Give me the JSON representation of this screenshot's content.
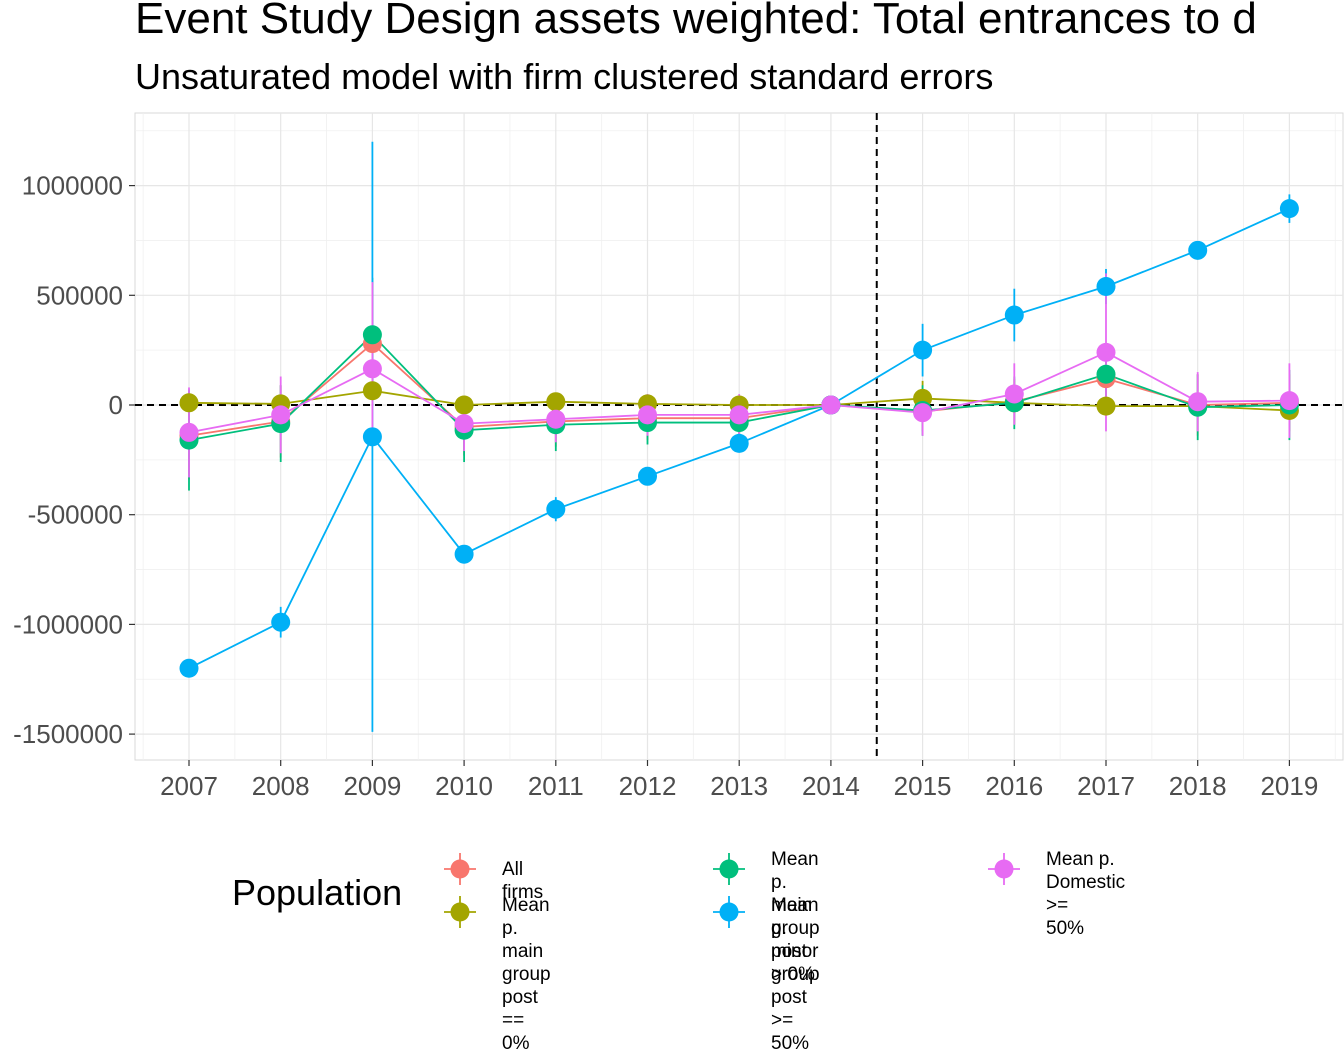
{
  "chart_data": {
    "type": "line",
    "title": "Event Study Design assets weighted: Total entrances to d",
    "subtitle": "Unsaturated model with firm clustered standard errors",
    "xlabel": "",
    "ylabel": "",
    "x": [
      "2007",
      "2008",
      "2009",
      "2010",
      "2011",
      "2012",
      "2013",
      "2014",
      "2015",
      "2016",
      "2017",
      "2018",
      "2019"
    ],
    "ylim": [
      -1650000,
      1330000
    ],
    "yticks": [
      -1500000,
      -1000000,
      -500000,
      0,
      500000,
      1000000
    ],
    "ytick_labels": [
      "-1500000",
      "-1000000",
      "-500000",
      "0",
      "500000",
      "1000000"
    ],
    "hline": 0,
    "vline_between": [
      "2014",
      "2015"
    ],
    "grid": true,
    "legend": {
      "title": "Population",
      "position": "bottom"
    },
    "series": [
      {
        "name": "All firms",
        "color": "#F8766D",
        "values": [
          -140000,
          -75000,
          280000,
          -100000,
          -75000,
          -60000,
          -60000,
          0,
          -30000,
          15000,
          120000,
          0,
          10000
        ],
        "ci_low": [
          -340000,
          -240000,
          0,
          -230000,
          -190000,
          -160000,
          -160000,
          0,
          -120000,
          -90000,
          10000,
          -140000,
          -120000
        ],
        "ci_high": [
          60000,
          90000,
          560000,
          30000,
          40000,
          40000,
          40000,
          0,
          60000,
          120000,
          230000,
          140000,
          140000
        ]
      },
      {
        "name": "Mean p. main group\npost == 0%",
        "color": "#A3A500",
        "values": [
          10000,
          5000,
          65000,
          0,
          15000,
          5000,
          0,
          0,
          30000,
          10000,
          -5000,
          -5000,
          -25000
        ],
        "ci_low": [
          -10000,
          -15000,
          20000,
          -20000,
          -5000,
          -15000,
          -20000,
          0,
          -50000,
          -10000,
          -20000,
          -20000,
          -60000
        ],
        "ci_high": [
          30000,
          25000,
          110000,
          20000,
          35000,
          25000,
          20000,
          0,
          110000,
          30000,
          10000,
          10000,
          10000
        ]
      },
      {
        "name": "Mean p. main group\npost > 0%",
        "color": "#00BF7D",
        "values": [
          -160000,
          -85000,
          320000,
          -115000,
          -90000,
          -80000,
          -80000,
          0,
          -25000,
          10000,
          140000,
          -10000,
          0
        ],
        "ci_low": [
          -390000,
          -260000,
          60000,
          -260000,
          -210000,
          -180000,
          -180000,
          0,
          -140000,
          -110000,
          20000,
          -160000,
          -160000
        ],
        "ci_high": [
          70000,
          90000,
          580000,
          30000,
          30000,
          20000,
          20000,
          0,
          90000,
          130000,
          260000,
          140000,
          160000
        ]
      },
      {
        "name": "Mean p. minor group\npost >= 50%",
        "color": "#00B0F6",
        "values": [
          -1200000,
          -990000,
          -145000,
          -680000,
          -475000,
          -325000,
          -175000,
          0,
          250000,
          410000,
          540000,
          705000,
          895000
        ],
        "ci_low": [
          -1230000,
          -1060000,
          -1490000,
          -710000,
          -530000,
          -355000,
          -200000,
          0,
          130000,
          290000,
          460000,
          680000,
          830000
        ],
        "ci_high": [
          -1170000,
          -920000,
          1200000,
          -650000,
          -420000,
          -295000,
          -150000,
          0,
          370000,
          530000,
          620000,
          730000,
          960000
        ]
      },
      {
        "name": "Mean p. Domestic >=\n50%",
        "color": "#E76BF3",
        "values": [
          -125000,
          -45000,
          165000,
          -85000,
          -65000,
          -45000,
          -45000,
          0,
          -35000,
          50000,
          240000,
          15000,
          20000
        ],
        "ci_low": [
          -330000,
          -220000,
          -150000,
          -210000,
          -170000,
          -140000,
          -140000,
          0,
          -140000,
          -90000,
          -120000,
          -120000,
          -150000
        ],
        "ci_high": [
          80000,
          130000,
          560000,
          40000,
          40000,
          50000,
          50000,
          0,
          70000,
          190000,
          600000,
          150000,
          190000
        ]
      }
    ]
  }
}
